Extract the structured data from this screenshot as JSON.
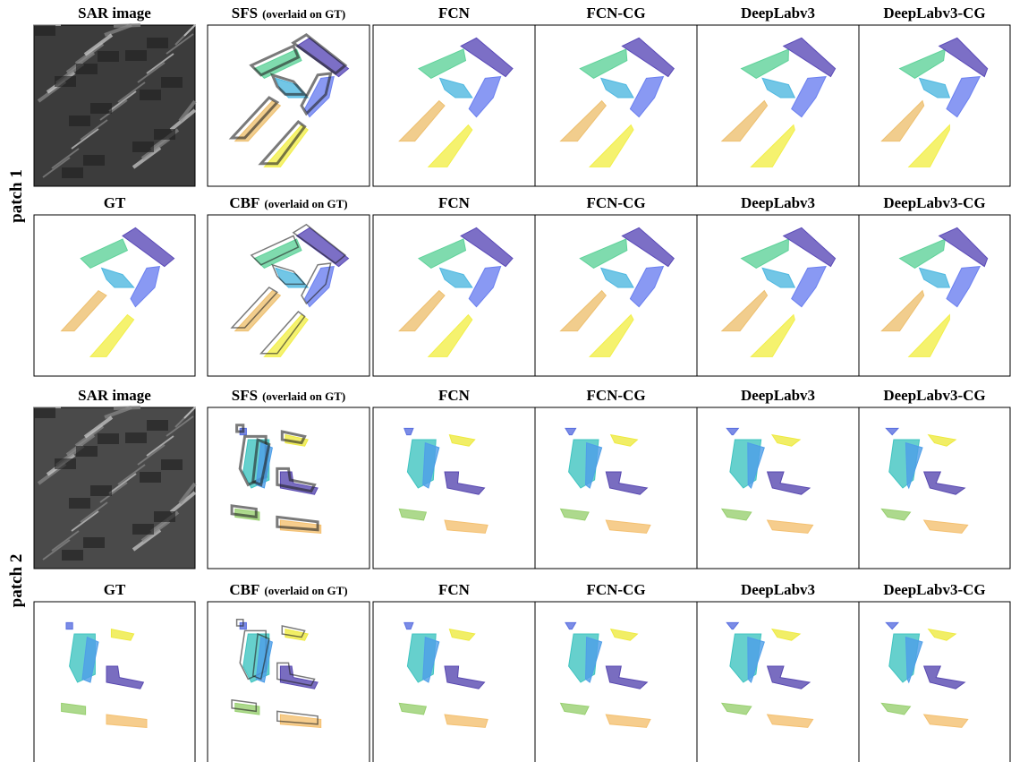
{
  "patches": [
    {
      "label": "patch 1",
      "rows": [
        {
          "titles": [
            "SAR image",
            {
              "main": "SFS",
              "note": "(overlaid on GT)"
            },
            "FCN",
            "FCN-CG",
            "DeepLabv3",
            "DeepLabv3-CG"
          ]
        },
        {
          "titles": [
            "GT",
            {
              "main": "CBF",
              "note": "(overlaid on GT)"
            },
            "FCN",
            "FCN-CG",
            "DeepLabv3",
            "DeepLabv3-CG"
          ]
        }
      ]
    },
    {
      "label": "patch 2",
      "rows": [
        {
          "titles": [
            "SAR image",
            {
              "main": "SFS",
              "note": "(overlaid on GT)"
            },
            "FCN",
            "FCN-CG",
            "DeepLabv3",
            "DeepLabv3-CG"
          ]
        },
        {
          "titles": [
            "GT",
            {
              "main": "CBF",
              "note": "(overlaid on GT)"
            },
            "FCN",
            "FCN-CG",
            "DeepLabv3",
            "DeepLabv3-CG"
          ]
        }
      ]
    }
  ]
}
